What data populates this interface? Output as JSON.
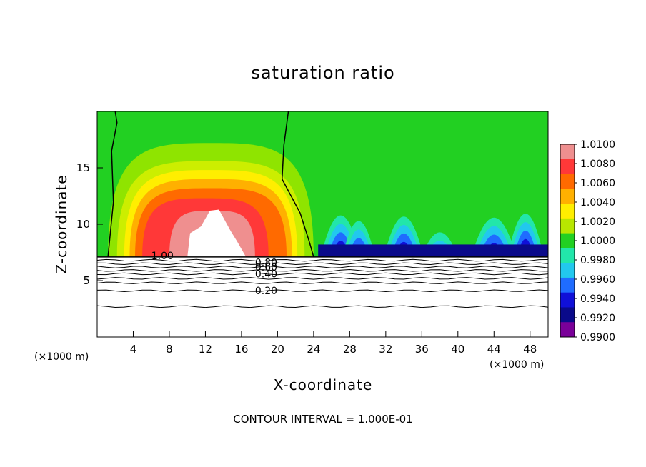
{
  "chart_data": {
    "type": "heatmap",
    "title": "saturation ratio",
    "xlabel": "X-coordinate",
    "ylabel": "Z-coordinate",
    "x_unit_left": "(×1000 m)",
    "x_unit_right": "(×1000 m)",
    "xlim": [
      0,
      50
    ],
    "ylim": [
      0,
      20
    ],
    "xticks": [
      4,
      8,
      12,
      16,
      20,
      24,
      28,
      32,
      36,
      40,
      44,
      48
    ],
    "yticks": [
      5,
      10,
      15
    ],
    "colorbar": {
      "labels": [
        "1.0100",
        "1.0080",
        "1.0060",
        "1.0040",
        "1.0020",
        "1.0000",
        "0.9980",
        "0.9960",
        "0.9940",
        "0.9920",
        "0.9900"
      ],
      "colors": [
        "#ef8f8f",
        "#ff3838",
        "#ff6a00",
        "#ffb000",
        "#ffee00",
        "#b8e600",
        "#22d022",
        "#22e6aa",
        "#22c8ee",
        "#1f6cff",
        "#1010d8",
        "#0a0a8a",
        "#7a0099"
      ]
    },
    "contour_labels": [
      {
        "text": "1.00",
        "x": 6.0,
        "z": 7.2
      },
      {
        "text": "0.80",
        "x": 17.5,
        "z": 6.6
      },
      {
        "text": "0.60",
        "x": 17.5,
        "z": 6.2
      },
      {
        "text": "0.40",
        "x": 17.5,
        "z": 5.6
      },
      {
        "text": "0.20",
        "x": 17.5,
        "z": 4.1
      }
    ],
    "contour_interval_text": "CONTOUR INTERVAL = 1.000E-01"
  }
}
